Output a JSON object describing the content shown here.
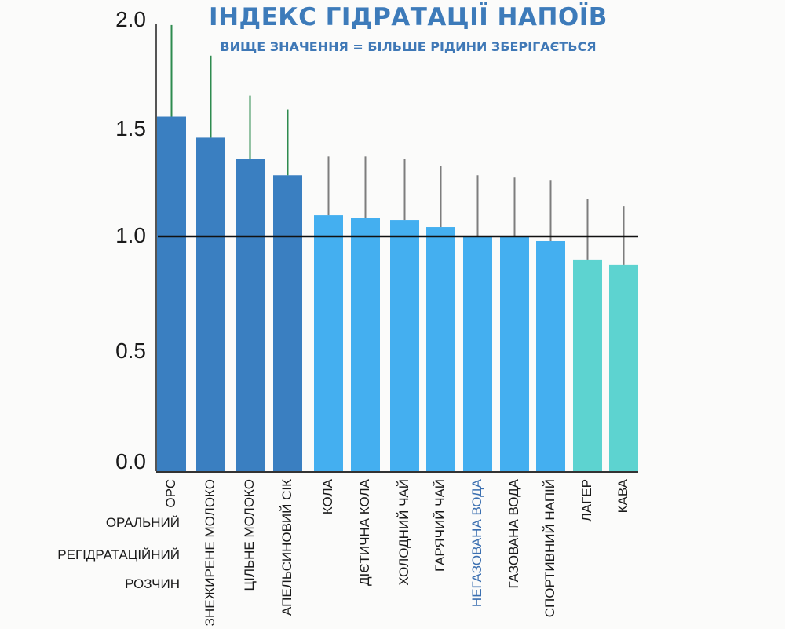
{
  "header": {
    "title": "ІНДЕКС ГІДРАТАЦІЇ НАПОЇВ",
    "subtitle": "ВИЩЕ ЗНАЧЕННЯ = БІЛЬШЕ РІДИНИ ЗБЕРІГАЄТЬСЯ"
  },
  "ors_full_name": [
    "ОРАЛЬНИЙ",
    "РЕГІДРАТАЦІЙНИЙ",
    "РОЗЧИН"
  ],
  "colors": {
    "dark_blue": "#3a7fc1",
    "light_blue": "#44aff0",
    "teal": "#5dd3d0",
    "error_bar_green": "#2e8b4f",
    "error_bar_gray": "#7d7d7d",
    "reference_line": "#111111",
    "highlight_label": "#3b6fb0"
  },
  "chart_data": {
    "type": "bar",
    "title": "ІНДЕКС ГІДРАТАЦІЇ НАПОЇВ",
    "subtitle": "ВИЩЕ ЗНАЧЕННЯ = БІЛЬШЕ РІДИНИ ЗБЕРІГАЄТЬСЯ",
    "xlabel": "",
    "ylabel": "",
    "ylim": [
      0,
      2.0
    ],
    "yticks": [
      "0.0",
      "0.5",
      "1.0",
      "1.5",
      "2.0"
    ],
    "reference_line": 1.0,
    "grid": false,
    "legend": null,
    "categories": [
      "ОРС",
      "ЗНЕЖИРЕНЕ МОЛОКО",
      "ЦІЛЬНЕ МОЛОКО",
      "АПЕЛЬСИНОВИЙ СІК",
      "КОЛА",
      "ДІЄТИЧНА КОЛА",
      "ХОЛОДНИЙ ЧАЙ",
      "ГАРЯЧИЙ ЧАЙ",
      "НЕГАЗОВАНА ВОДА",
      "ГАЗОВАНА ВОДА",
      "СПОРТИВНИЙ НАПІЙ",
      "ЛАГЕР",
      "КАВА"
    ],
    "values": [
      1.51,
      1.42,
      1.33,
      1.26,
      1.09,
      1.08,
      1.07,
      1.04,
      1.0,
      1.0,
      0.98,
      0.9,
      0.88
    ],
    "error_upper": [
      1.9,
      1.77,
      1.6,
      1.54,
      1.34,
      1.34,
      1.33,
      1.3,
      1.26,
      1.25,
      1.24,
      1.16,
      1.13
    ],
    "groups": [
      "dark",
      "dark",
      "dark",
      "dark",
      "light",
      "light",
      "light",
      "light",
      "light",
      "light",
      "light",
      "teal",
      "teal"
    ]
  }
}
